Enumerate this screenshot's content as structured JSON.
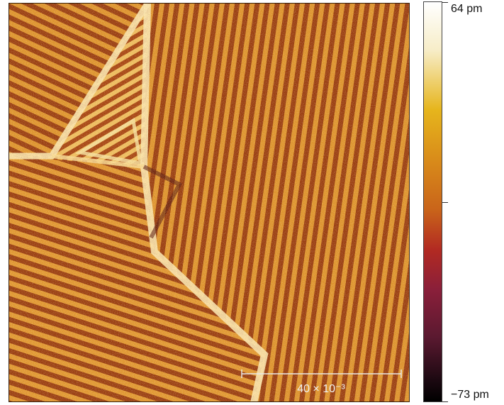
{
  "image": {
    "kind": "scanning probe height map (false color)",
    "subject": "striped moiré lattice domains meeting along bright triangular boundaries",
    "palette": {
      "low": "#000000",
      "mid_low": "#8a1f3a",
      "mid": "#c9641a",
      "mid_high": "#e6b51c",
      "high": "#ffffff"
    }
  },
  "scale_bar": {
    "label": "40 × 10⁻³"
  },
  "colorbar": {
    "max_label": "64 pm",
    "min_label": "−73 pm"
  }
}
